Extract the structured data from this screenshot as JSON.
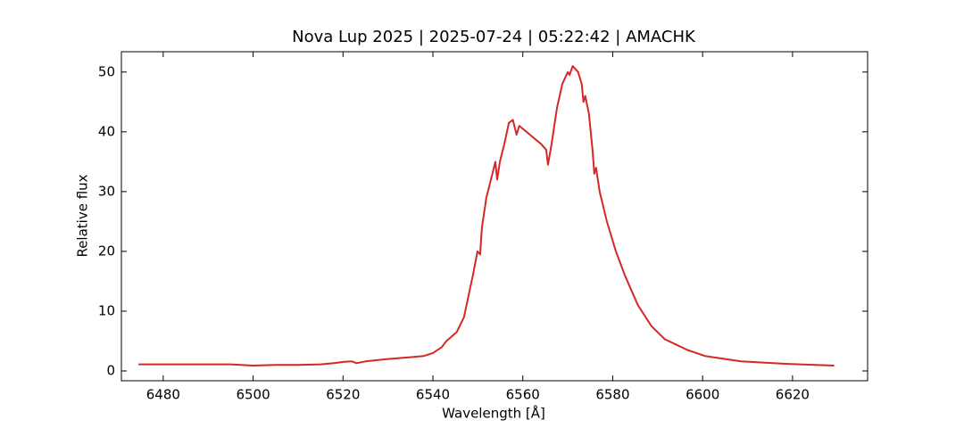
{
  "chart_data": {
    "type": "line",
    "title": "Nova Lup 2025 | 2025-07-24 | 05:22:42 | AMACHK",
    "x_label": "Wavelength [Å]",
    "y_label": "Relative flux",
    "color": "#d62728",
    "x": [
      6474.5,
      6480,
      6485,
      6490,
      6495,
      6500,
      6505,
      6510,
      6515,
      6518,
      6520,
      6522,
      6523,
      6525,
      6530,
      6535,
      6538,
      6540,
      6542,
      6543,
      6545.3,
      6546.9,
      6548.9,
      6549.9,
      6550.5,
      6550.9,
      6551.9,
      6552.9,
      6553.9,
      6554.3,
      6554.9,
      6555.9,
      6556.9,
      6557.8,
      6558.6,
      6559.2,
      6560.8,
      6562.4,
      6564,
      6565.2,
      6565.6,
      6566.4,
      6567.6,
      6568.8,
      6570,
      6570.4,
      6571.1,
      6572.3,
      6573.1,
      6573.5,
      6573.9,
      6574.7,
      6575.5,
      6575.9,
      6576.3,
      6577.1,
      6578.7,
      6580.7,
      6582.7,
      6585.6,
      6588.6,
      6591.6,
      6596.6,
      6600.5,
      6608.5,
      6618.4,
      6629.3
    ],
    "values": [
      1.1,
      1.1,
      1.1,
      1.1,
      1.1,
      0.9,
      1.0,
      1.0,
      1.1,
      1.3,
      1.5,
      1.6,
      1.3,
      1.6,
      2.0,
      2.3,
      2.5,
      3.0,
      4.0,
      5.0,
      6.5,
      9.0,
      16,
      20,
      19.5,
      24,
      29,
      32,
      35,
      32,
      35,
      38,
      41.5,
      42,
      39.5,
      41,
      40,
      39,
      38,
      37,
      34.5,
      38,
      44,
      48,
      50,
      49.5,
      51,
      50,
      48,
      45,
      46,
      43,
      37,
      33,
      34,
      30,
      25,
      20,
      16,
      11,
      7.5,
      5.3,
      3.5,
      2.5,
      1.6,
      1.2,
      0.9
    ],
    "xlim": [
      6470.7,
      6636.7
    ],
    "xticks": [
      6480,
      6500,
      6520,
      6540,
      6560,
      6580,
      6600,
      6620
    ],
    "ylim": [
      -1.64,
      53.4
    ],
    "yticks": [
      0,
      10,
      20,
      30,
      40,
      50
    ]
  }
}
